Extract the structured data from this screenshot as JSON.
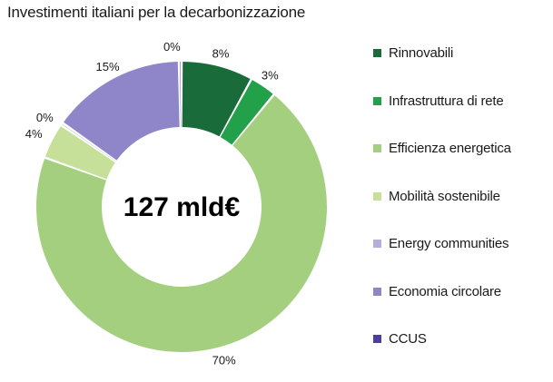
{
  "chart_data": {
    "type": "pie",
    "variant": "donut",
    "title": "Investimenti italiani per la decarbonizzazione",
    "center_label": "127 mld€",
    "legend_position": "right",
    "series": [
      {
        "name": "Rinnovabili",
        "value": 8,
        "label": "8%",
        "color": "#1a6b3a"
      },
      {
        "name": "Infrastruttura di rete",
        "value": 3,
        "label": "3%",
        "color": "#22a04a"
      },
      {
        "name": "Efficienza energetica",
        "value": 70,
        "label": "70%",
        "color": "#a4cf7e"
      },
      {
        "name": "Mobilità sostenibile",
        "value": 4,
        "label": "4%",
        "color": "#c6e09a"
      },
      {
        "name": "Energy communities",
        "value": 0.3,
        "label": "0%",
        "color": "#b3aedb"
      },
      {
        "name": "Economia circolare",
        "value": 15,
        "label": "15%",
        "color": "#8f86c9"
      },
      {
        "name": "CCUS",
        "value": 0.3,
        "label": "0%",
        "color": "#4a3fa0"
      }
    ]
  }
}
